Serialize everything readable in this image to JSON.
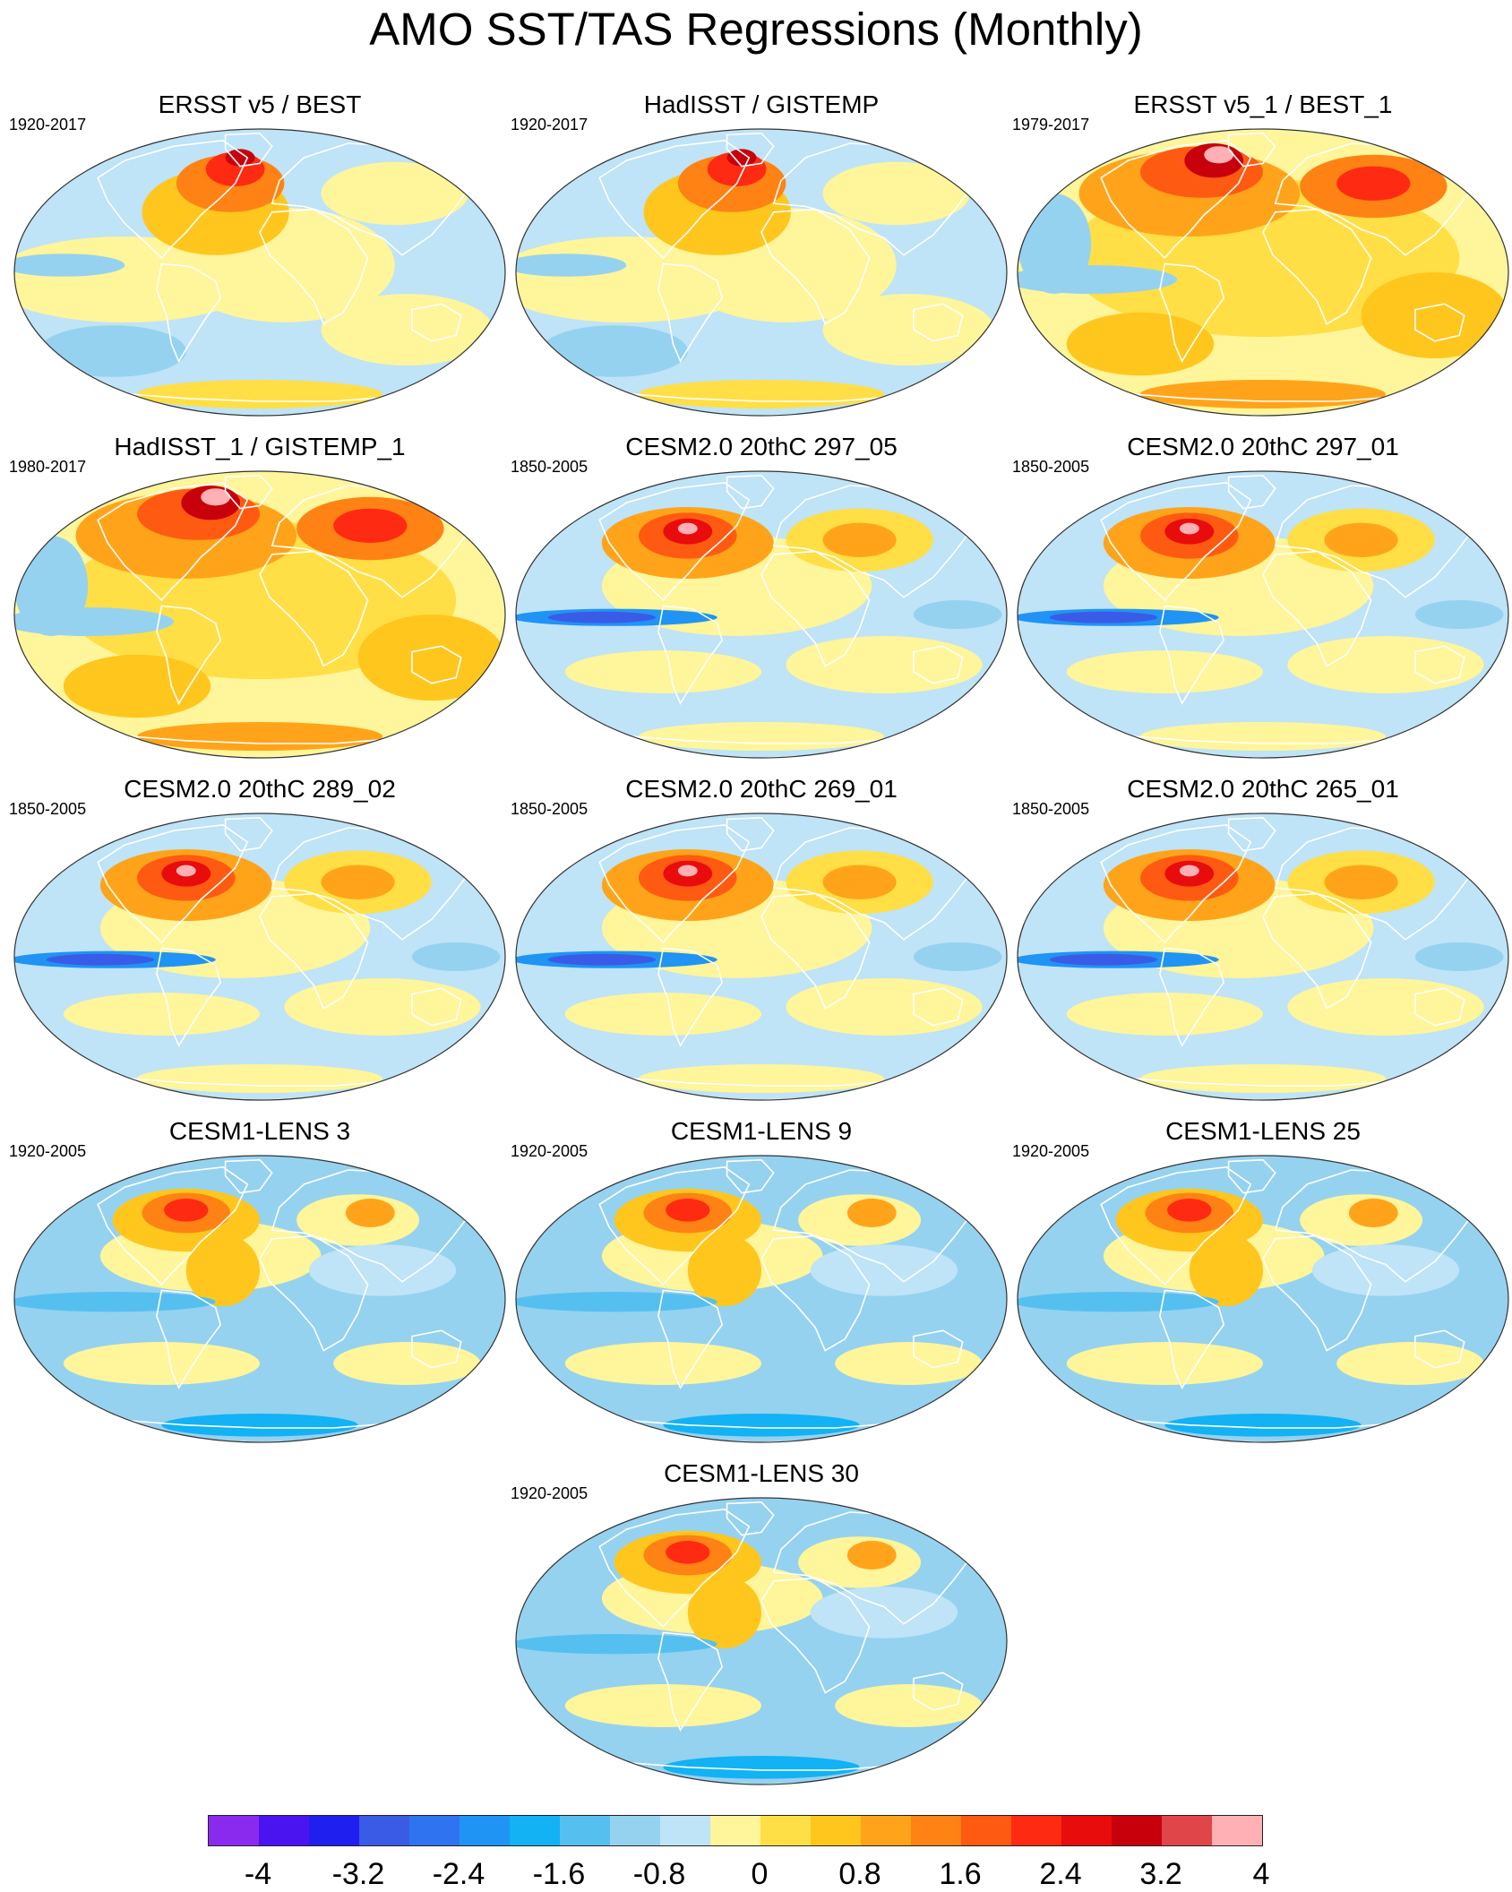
{
  "title": "AMO SST/TAS Regressions (Monthly)",
  "panels": [
    {
      "title": "ERSST v5 / BEST",
      "period": "1920-2017",
      "style": "obs_weak"
    },
    {
      "title": "HadISST / GISTEMP",
      "period": "1920-2017",
      "style": "obs_weak"
    },
    {
      "title": "ERSST v5_1 / BEST_1",
      "period": "1979-2017",
      "style": "obs_strong"
    },
    {
      "title": "HadISST_1 / GISTEMP_1",
      "period": "1980-2017",
      "style": "obs_strong"
    },
    {
      "title": "CESM2.0 20thC 297_05",
      "period": "1850-2005",
      "style": "cesm2"
    },
    {
      "title": "CESM2.0 20thC 297_01",
      "period": "1850-2005",
      "style": "cesm2"
    },
    {
      "title": "CESM2.0 20thC 289_02",
      "period": "1850-2005",
      "style": "cesm2"
    },
    {
      "title": "CESM2.0 20thC 269_01",
      "period": "1850-2005",
      "style": "cesm2"
    },
    {
      "title": "CESM2.0 20thC 265_01",
      "period": "1850-2005",
      "style": "cesm2"
    },
    {
      "title": "CESM1-LENS 3",
      "period": "1920-2005",
      "style": "lens"
    },
    {
      "title": "CESM1-LENS 9",
      "period": "1920-2005",
      "style": "lens"
    },
    {
      "title": "CESM1-LENS 25",
      "period": "1920-2005",
      "style": "lens"
    },
    {
      "title": "CESM1-LENS 30",
      "period": "1920-2005",
      "style": "lens"
    }
  ],
  "colorbar": {
    "colors": [
      "#8b2aef",
      "#4a14f0",
      "#1f1ff0",
      "#3a5be6",
      "#2f73f0",
      "#1f94f4",
      "#12b2f5",
      "#55c0f0",
      "#95d2f0",
      "#bfe3f7",
      "#fff59a",
      "#ffdf45",
      "#ffc61e",
      "#ffa41a",
      "#ff8214",
      "#ff5a12",
      "#ff2a12",
      "#e80c0c",
      "#c8000c",
      "#e0454a",
      "#ffb0b4"
    ],
    "ticks": [
      "-4",
      "-3.2",
      "-2.4",
      "-1.6",
      "-0.8",
      "0",
      "0.8",
      "1.6",
      "2.4",
      "3.2",
      "4"
    ]
  },
  "palette": {
    "water_blue": "#bfe3f7",
    "ocean_outline": "#333333",
    "coast": "#ffffff"
  }
}
